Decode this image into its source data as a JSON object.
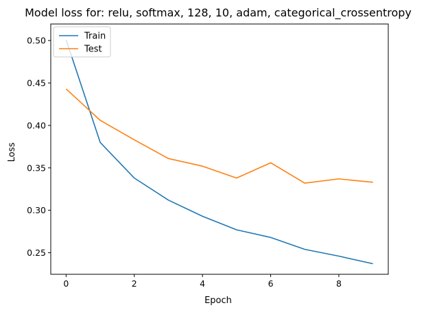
{
  "chart_data": {
    "type": "line",
    "title": "Model loss for: relu, softmax, 128, 10, adam, categorical_crossentropy",
    "xlabel": "Epoch",
    "ylabel": "Loss",
    "xlim": [
      -0.45,
      9.45
    ],
    "ylim": [
      0.2246,
      0.5195
    ],
    "x": [
      0,
      1,
      2,
      3,
      4,
      5,
      6,
      7,
      8,
      9
    ],
    "xticks": [
      0,
      2,
      4,
      6,
      8
    ],
    "xtick_labels": [
      "0",
      "2",
      "4",
      "6",
      "8"
    ],
    "yticks": [
      0.25,
      0.3,
      0.35,
      0.4,
      0.45,
      0.5
    ],
    "ytick_labels": [
      "0.25",
      "0.30",
      "0.35",
      "0.40",
      "0.45",
      "0.50"
    ],
    "grid": false,
    "legend_position": "top-left",
    "series": [
      {
        "name": "Train",
        "color": "#1f77b4",
        "values": [
          0.501,
          0.38,
          0.338,
          0.312,
          0.293,
          0.277,
          0.268,
          0.254,
          0.246,
          0.237
        ]
      },
      {
        "name": "Test",
        "color": "#ff7f0e",
        "values": [
          0.443,
          0.406,
          0.383,
          0.361,
          0.352,
          0.338,
          0.356,
          0.332,
          0.337,
          0.333
        ]
      }
    ]
  }
}
